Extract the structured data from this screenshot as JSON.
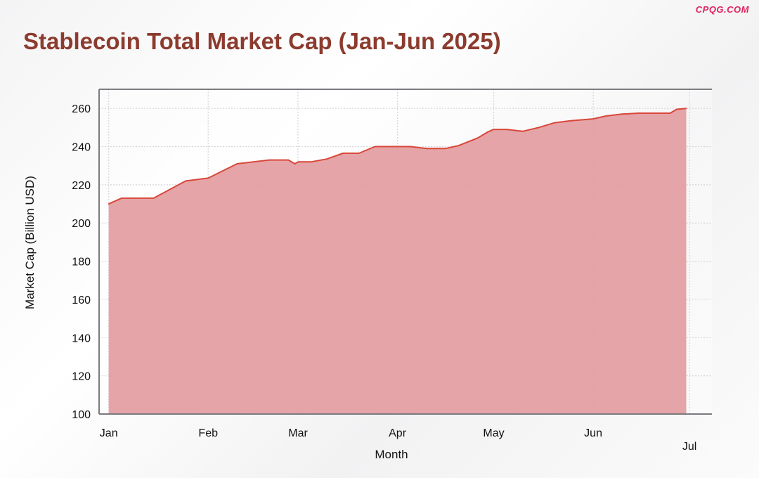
{
  "watermark": "CPQG.COM",
  "colors": {
    "title": "#8c3b2e",
    "area_fill": "#e49fa2",
    "line": "#d9473a",
    "watermark": "#e0245e"
  },
  "chart_data": {
    "type": "area",
    "title": "Stablecoin Total Market Cap (Jan-Jun 2025)",
    "xlabel": "Month",
    "ylabel": "Market Cap (Billion USD)",
    "ylim": [
      100,
      270
    ],
    "yticks": [
      100,
      120,
      140,
      160,
      180,
      200,
      220,
      240,
      260
    ],
    "xlim": [
      "2024-12-29",
      "2025-07-08"
    ],
    "xticks": [
      {
        "date": "2025-01-01",
        "label": "Jan"
      },
      {
        "date": "2025-02-01",
        "label": "Feb"
      },
      {
        "date": "2025-03-01",
        "label": "Mar"
      },
      {
        "date": "2025-04-01",
        "label": "Apr"
      },
      {
        "date": "2025-05-01",
        "label": "May"
      },
      {
        "date": "2025-06-01",
        "label": "Jun"
      },
      {
        "date": "2025-07-01",
        "label": "Jul"
      }
    ],
    "grid": true,
    "legend": "none",
    "series": [
      {
        "points": [
          {
            "x": "2025-01-01",
            "y": 210
          },
          {
            "x": "2025-01-05",
            "y": 213
          },
          {
            "x": "2025-01-15",
            "y": 213
          },
          {
            "x": "2025-01-25",
            "y": 222
          },
          {
            "x": "2025-02-01",
            "y": 223.5
          },
          {
            "x": "2025-02-10",
            "y": 231
          },
          {
            "x": "2025-02-20",
            "y": 233
          },
          {
            "x": "2025-02-26",
            "y": 233
          },
          {
            "x": "2025-02-28",
            "y": 231
          },
          {
            "x": "2025-03-01",
            "y": 232
          },
          {
            "x": "2025-03-05",
            "y": 232
          },
          {
            "x": "2025-03-10",
            "y": 233.5
          },
          {
            "x": "2025-03-15",
            "y": 236.5
          },
          {
            "x": "2025-03-20",
            "y": 236.5
          },
          {
            "x": "2025-03-25",
            "y": 240
          },
          {
            "x": "2025-04-01",
            "y": 240
          },
          {
            "x": "2025-04-05",
            "y": 240
          },
          {
            "x": "2025-04-10",
            "y": 239
          },
          {
            "x": "2025-04-16",
            "y": 239
          },
          {
            "x": "2025-04-20",
            "y": 240.5
          },
          {
            "x": "2025-04-26",
            "y": 244.5
          },
          {
            "x": "2025-04-29",
            "y": 247.5
          },
          {
            "x": "2025-05-01",
            "y": 249
          },
          {
            "x": "2025-05-05",
            "y": 249
          },
          {
            "x": "2025-05-10",
            "y": 248
          },
          {
            "x": "2025-05-15",
            "y": 250
          },
          {
            "x": "2025-05-20",
            "y": 252.5
          },
          {
            "x": "2025-05-25",
            "y": 253.5
          },
          {
            "x": "2025-06-01",
            "y": 254.5
          },
          {
            "x": "2025-06-05",
            "y": 256
          },
          {
            "x": "2025-06-10",
            "y": 257
          },
          {
            "x": "2025-06-15",
            "y": 257.5
          },
          {
            "x": "2025-06-20",
            "y": 257.5
          },
          {
            "x": "2025-06-25",
            "y": 257.5
          },
          {
            "x": "2025-06-27",
            "y": 259.5
          },
          {
            "x": "2025-06-30",
            "y": 260
          }
        ]
      }
    ]
  }
}
